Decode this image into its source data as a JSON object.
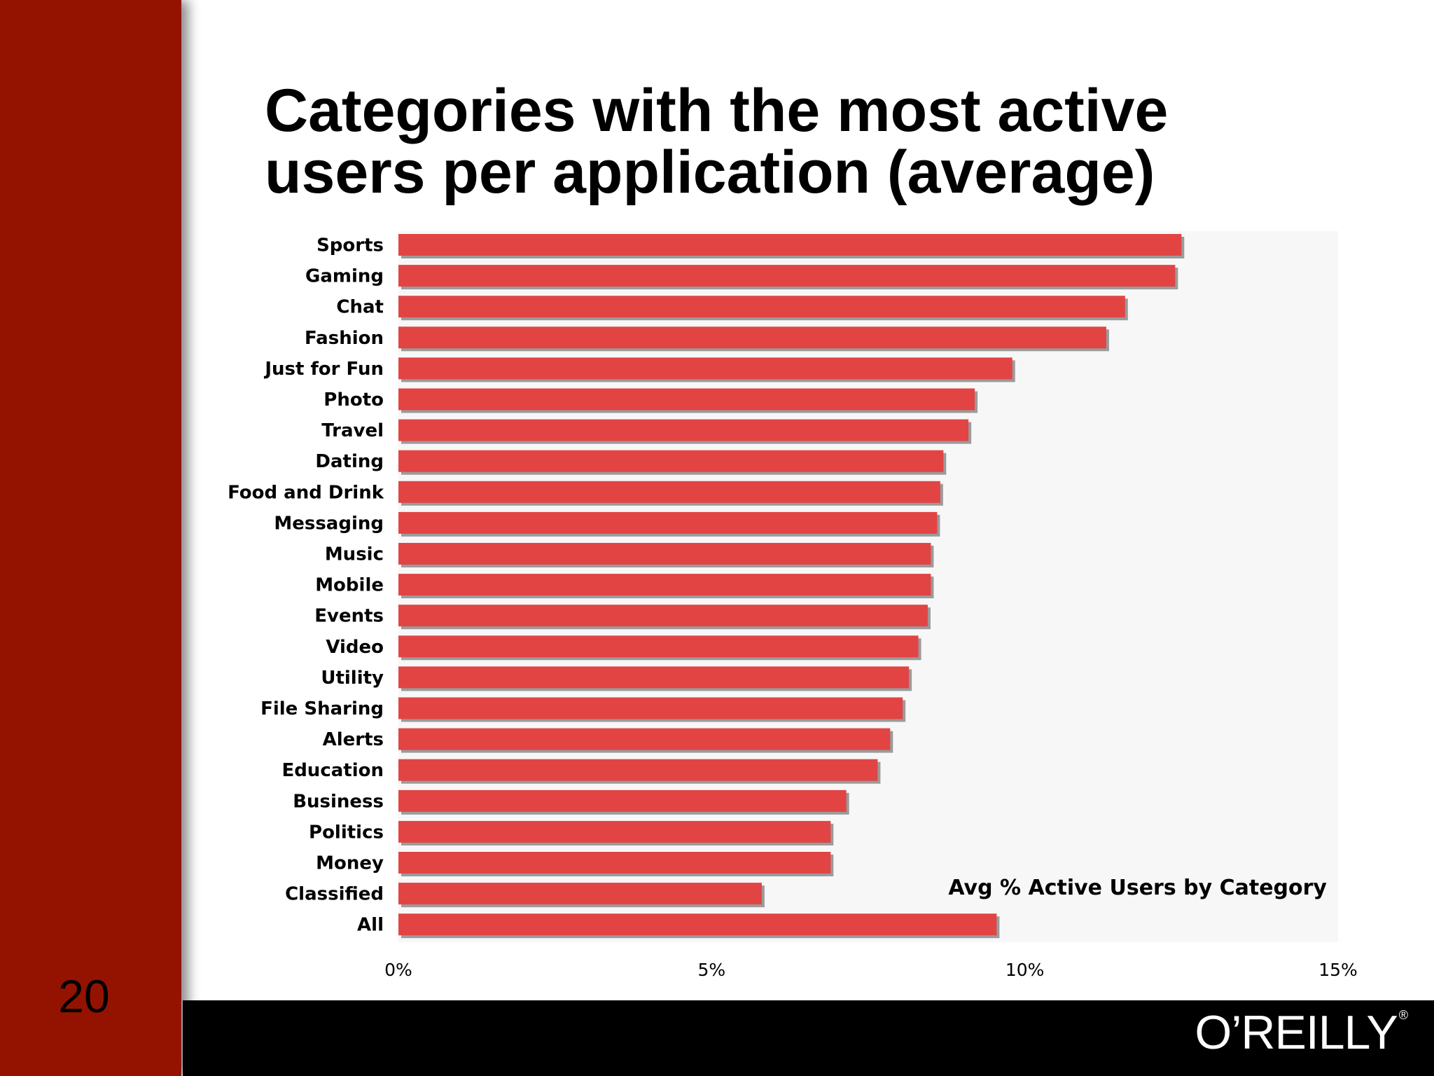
{
  "slide": {
    "number": "20",
    "title_line1": "Categories with the most active",
    "title_line2": "users per application (average)",
    "logo_text": "O’REILLY",
    "logo_mark": "®"
  },
  "colors": {
    "sidebar": "#941300",
    "bar": "#e24444",
    "bar_shadow": "#9b9b9b",
    "plot_background": "#f7f7f7",
    "footer": "#000000"
  },
  "chart_data": {
    "type": "bar",
    "orientation": "horizontal",
    "categories": [
      "Sports",
      "Gaming",
      "Chat",
      "Fashion",
      "Just for Fun",
      "Photo",
      "Travel",
      "Dating",
      "Food and Drink",
      "Messaging",
      "Music",
      "Mobile",
      "Events",
      "Video",
      "Utility",
      "File Sharing",
      "Alerts",
      "Education",
      "Business",
      "Politics",
      "Money",
      "Classified",
      "All"
    ],
    "values": [
      12.5,
      12.4,
      11.6,
      11.3,
      9.8,
      9.2,
      9.1,
      8.7,
      8.65,
      8.6,
      8.5,
      8.5,
      8.45,
      8.3,
      8.15,
      8.05,
      7.85,
      7.65,
      7.15,
      6.9,
      6.9,
      5.8,
      9.55
    ],
    "series": [
      {
        "name": "Avg % Active Users by Category"
      }
    ],
    "xlim": [
      0,
      15
    ],
    "ticks": [
      "0%",
      "5%",
      "10%",
      "15%"
    ],
    "tick_values": [
      0,
      5,
      10,
      15
    ],
    "legend_position": "bottom-right",
    "grid": false
  }
}
